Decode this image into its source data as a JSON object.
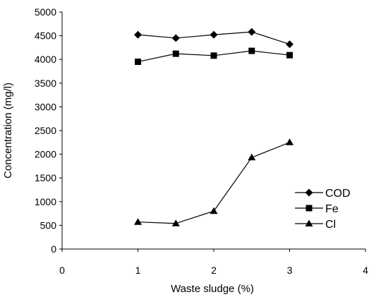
{
  "chart_data": {
    "type": "line",
    "xlabel": "Waste sludge (%)",
    "ylabel": "Concentration (mg/l)",
    "xlim": [
      0,
      4
    ],
    "ylim": [
      0,
      5000
    ],
    "x_ticks": [
      "0",
      "1",
      "2",
      "3",
      "4"
    ],
    "y_ticks": [
      "0",
      "500",
      "1000",
      "1500",
      "2000",
      "2500",
      "3000",
      "3500",
      "4000",
      "4500",
      "5000"
    ],
    "grid": false,
    "legend_position": "right",
    "x": [
      1,
      1.5,
      2,
      2.5,
      3
    ],
    "series": [
      {
        "name": "COD",
        "marker": "diamond",
        "values": [
          4520,
          4450,
          4520,
          4580,
          4320
        ]
      },
      {
        "name": "Fe",
        "marker": "square",
        "values": [
          3950,
          4120,
          4080,
          4180,
          4090
        ]
      },
      {
        "name": "Cl",
        "marker": "triangle",
        "values": [
          570,
          540,
          800,
          1930,
          2250
        ]
      }
    ]
  }
}
